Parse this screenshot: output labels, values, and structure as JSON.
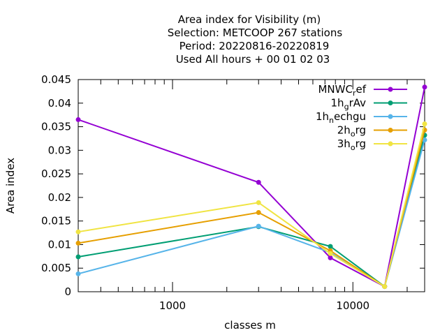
{
  "chart_data": {
    "type": "line",
    "title_lines": [
      "Area index  for Visibility (m)",
      "Selection: METCOOP    267 stations",
      "Period: 20220816-20220819",
      "Used  All hours + 00 01 02 03"
    ],
    "xlabel": "classes m",
    "ylabel": "Area index",
    "xscale": "log",
    "xlim": [
      300,
      25000
    ],
    "ylim": [
      0,
      0.045
    ],
    "x_tick_labels": [
      "1000",
      "10000"
    ],
    "y_ticks": [
      "0",
      "0.005",
      "0.01",
      "0.015",
      "0.02",
      "0.025",
      "0.03",
      "0.035",
      "0.04",
      "0.045"
    ],
    "x": [
      300,
      3000,
      7500,
      15000,
      25000
    ],
    "legend_position": "top-right",
    "series": [
      {
        "name": "MNWC_ref",
        "legend_parts": [
          "MNWC",
          "r",
          "ef"
        ],
        "color": "#9400d3",
        "values": [
          0.0365,
          0.0232,
          0.0072,
          0.0011,
          0.0434
        ]
      },
      {
        "name": "1h_grAv",
        "legend_parts": [
          "1h",
          "g",
          "rAv"
        ],
        "color": "#009e73",
        "values": [
          0.0074,
          0.0138,
          0.0096,
          0.0011,
          0.0332
        ]
      },
      {
        "name": "1h_nechgu",
        "legend_parts": [
          "1h",
          "n",
          "echgu"
        ],
        "color": "#56b4e9",
        "values": [
          0.0038,
          0.0139,
          0.0083,
          0.0011,
          0.0322
        ]
      },
      {
        "name": "2h_org",
        "legend_parts": [
          "2h",
          "o",
          "rg"
        ],
        "color": "#e69f00",
        "values": [
          0.0103,
          0.0168,
          0.0087,
          0.0011,
          0.0343
        ]
      },
      {
        "name": "3h_org",
        "legend_parts": [
          "3h",
          "o",
          "rg"
        ],
        "color": "#f0e442",
        "values": [
          0.0127,
          0.0189,
          0.0081,
          0.0011,
          0.0356
        ]
      }
    ]
  }
}
